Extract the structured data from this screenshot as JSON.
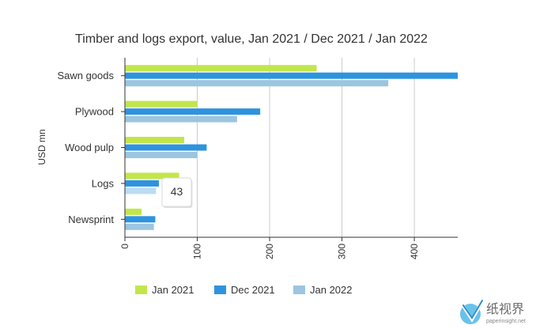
{
  "chart_data": {
    "type": "bar",
    "orientation": "horizontal",
    "title": "Timber and logs export, value, Jan 2021 / Dec 2021 / Jan 2022",
    "ylabel": "USD mn",
    "xlabel": "",
    "categories": [
      "Sawn goods",
      "Plywood",
      "Wood pulp",
      "Logs",
      "Newsprint"
    ],
    "series": [
      {
        "name": "Jan 2021",
        "color": "#c2e64a",
        "values": [
          265,
          100,
          82,
          75,
          23
        ]
      },
      {
        "name": "Dec 2021",
        "color": "#2e94de",
        "values": [
          460,
          187,
          113,
          47,
          42
        ]
      },
      {
        "name": "Jan 2022",
        "color": "#9cc5df",
        "values": [
          364,
          155,
          100,
          43,
          40
        ]
      }
    ],
    "xlim": [
      0,
      460
    ],
    "xticks": [
      0,
      100,
      200,
      300,
      400
    ],
    "grid": true,
    "legend": "bottom",
    "tooltip": {
      "category": "Logs",
      "series": "Jan 2022",
      "value": "43",
      "highlight_color": "#bcdcf2"
    }
  },
  "watermark": {
    "text": "纸视界",
    "subtext": "paperinsight.net"
  }
}
